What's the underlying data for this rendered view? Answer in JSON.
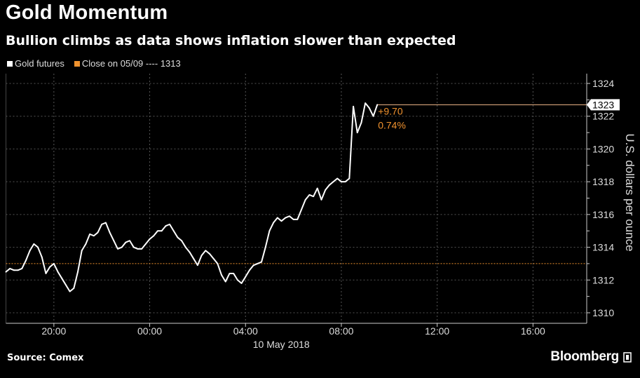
{
  "title": "Gold Momentum",
  "subtitle": "Bullion climbs as data shows inflation slower than expected",
  "legend": [
    {
      "label": "Gold futures",
      "color": "#ffffff"
    },
    {
      "label": "Close on 05/09 ---- 1313",
      "color": "#f0922e"
    }
  ],
  "source": "Source: Comex",
  "brand": "Bloomberg",
  "chart_data": {
    "type": "line",
    "title": "Gold Momentum",
    "xlabel": "10 May 2018",
    "ylabel": "U.S. dollars per ounce",
    "x_ticks": [
      "20:00",
      "00:00",
      "04:00",
      "08:00",
      "12:00",
      "16:00"
    ],
    "xlim": [
      "18:00",
      "18:15"
    ],
    "ylim": [
      1309.5,
      1324.5
    ],
    "y_ticks": [
      1310,
      1312,
      1314,
      1316,
      1318,
      1320,
      1322,
      1324
    ],
    "grid": true,
    "y_axis_side": "right",
    "reference_line": {
      "label": "Close on 05/09",
      "value": 1313,
      "color": "#f0922e"
    },
    "last_value_label": "1323",
    "change_labels": [
      "+9.70",
      "0.74%"
    ],
    "series": [
      {
        "name": "Gold futures",
        "color": "#ffffff",
        "start_time": "18:00",
        "interval_minutes": 10,
        "values": [
          1312.5,
          1312.7,
          1312.6,
          1312.6,
          1312.7,
          1313.2,
          1313.8,
          1314.2,
          1314.0,
          1313.4,
          1312.4,
          1312.8,
          1313.0,
          1312.5,
          1312.1,
          1311.7,
          1311.3,
          1311.5,
          1312.5,
          1313.8,
          1314.2,
          1314.8,
          1314.7,
          1314.9,
          1315.4,
          1315.5,
          1314.9,
          1314.4,
          1313.9,
          1314.0,
          1314.3,
          1314.4,
          1314.0,
          1313.9,
          1313.9,
          1314.2,
          1314.5,
          1314.7,
          1315.0,
          1315.0,
          1315.3,
          1315.4,
          1315.0,
          1314.6,
          1314.4,
          1314.0,
          1313.7,
          1313.3,
          1312.9,
          1313.5,
          1313.8,
          1313.6,
          1313.3,
          1313.0,
          1312.3,
          1311.9,
          1312.4,
          1312.4,
          1312.0,
          1311.8,
          1312.2,
          1312.6,
          1312.9,
          1313.0,
          1313.1,
          1314.0,
          1315.0,
          1315.5,
          1315.8,
          1315.6,
          1315.8,
          1315.9,
          1315.7,
          1315.7,
          1316.3,
          1316.9,
          1317.2,
          1317.1,
          1317.6,
          1316.9,
          1317.5,
          1317.8,
          1318.0,
          1318.2,
          1318.0,
          1318.0,
          1318.2,
          1322.6,
          1321.0,
          1321.6,
          1322.8,
          1322.5,
          1322.0,
          1322.7
        ]
      }
    ]
  }
}
